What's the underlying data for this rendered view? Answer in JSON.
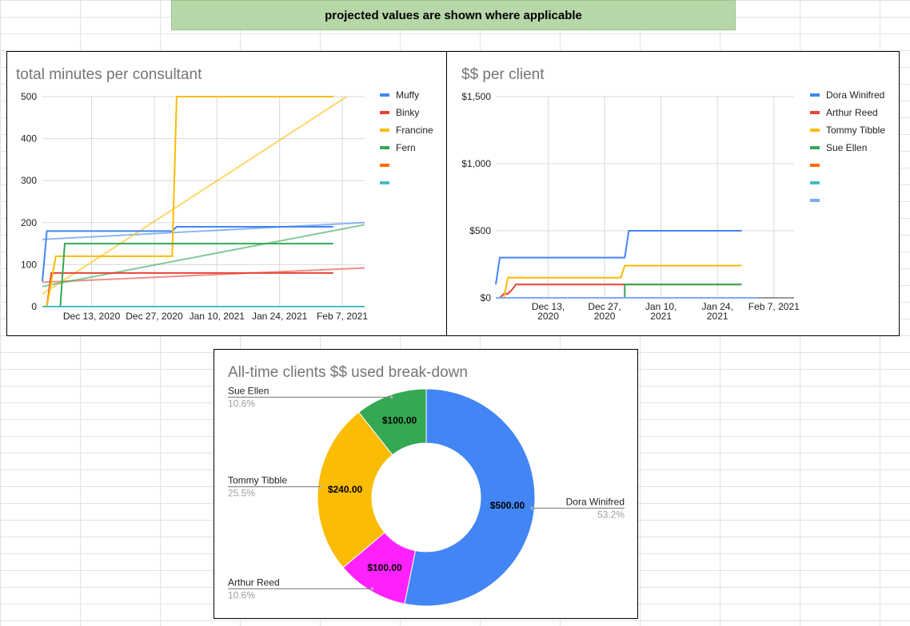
{
  "banner": {
    "text": "projected values are shown where applicable"
  },
  "chart_data": [
    {
      "type": "line",
      "title": "total minutes per consultant",
      "x_tick_labels": [
        "Dec 13, 2020",
        "Dec 27, 2020",
        "Jan 10, 2021",
        "Jan 24, 2021",
        "Feb 7, 2021"
      ],
      "x_tick_dates": [
        "2020-12-13",
        "2020-12-27",
        "2021-01-10",
        "2021-01-24",
        "2021-02-07"
      ],
      "xlim": [
        "2020-12-02",
        "2021-02-12"
      ],
      "ylim": [
        0,
        500
      ],
      "y_ticks": [
        0,
        100,
        200,
        300,
        400,
        500
      ],
      "y_tick_labels": [
        "0",
        "100",
        "200",
        "300",
        "400",
        "500"
      ],
      "grid": true,
      "legend_position": "right",
      "series": [
        {
          "name": "Muffy",
          "color": "#4285f4",
          "x": [
            "2020-12-02",
            "2020-12-03",
            "2020-12-31",
            "2021-01-01",
            "2021-02-05"
          ],
          "y": [
            60,
            180,
            180,
            190,
            190
          ]
        },
        {
          "name": "Binky",
          "color": "#ea4335",
          "x": [
            "2020-12-03",
            "2020-12-04",
            "2021-02-05"
          ],
          "y": [
            0,
            80,
            80
          ]
        },
        {
          "name": "Francine",
          "color": "#fbbc04",
          "x": [
            "2020-12-03",
            "2020-12-05",
            "2020-12-31",
            "2021-01-01",
            "2021-02-05"
          ],
          "y": [
            0,
            120,
            120,
            500,
            500
          ]
        },
        {
          "name": "Fern",
          "color": "#34a853",
          "x": [
            "2020-12-02",
            "2020-12-06",
            "2020-12-07",
            "2021-02-05"
          ],
          "y": [
            0,
            0,
            150,
            150
          ]
        },
        {
          "name": "",
          "color": "#ff6d01",
          "x": [
            "2020-12-02",
            "2021-02-12"
          ],
          "y": [
            0,
            0
          ]
        },
        {
          "name": "",
          "color": "#46bdc6",
          "x": [
            "2020-12-02",
            "2021-02-12"
          ],
          "y": [
            0,
            0
          ]
        }
      ],
      "trendlines": [
        {
          "color": "#4285f4",
          "x": [
            "2020-12-02",
            "2021-02-12"
          ],
          "y": [
            160,
            200
          ]
        },
        {
          "color": "#ea4335",
          "x": [
            "2020-12-02",
            "2021-02-12"
          ],
          "y": [
            58,
            92
          ]
        },
        {
          "color": "#fbbc04",
          "x": [
            "2020-12-02",
            "2021-02-08"
          ],
          "y": [
            30,
            500
          ]
        },
        {
          "color": "#34a853",
          "x": [
            "2020-12-02",
            "2021-02-12"
          ],
          "y": [
            48,
            195
          ]
        }
      ]
    },
    {
      "type": "line",
      "title": "$$ per client",
      "x_tick_labels": [
        [
          "Dec 13,",
          "2020"
        ],
        [
          "Dec 27,",
          "2020"
        ],
        [
          "Jan 10,",
          "2021"
        ],
        [
          "Jan 24,",
          "2021"
        ],
        [
          "Feb 7, 2021"
        ]
      ],
      "x_tick_dates": [
        "2020-12-13",
        "2020-12-27",
        "2021-01-10",
        "2021-01-24",
        "2021-02-07"
      ],
      "xlim": [
        "2020-11-30",
        "2021-02-12"
      ],
      "ylim": [
        0,
        1500
      ],
      "y_ticks": [
        0,
        500,
        1000,
        1500
      ],
      "y_tick_labels": [
        "$0",
        "$500",
        "$1,000",
        "$1,500"
      ],
      "grid": true,
      "legend_position": "right",
      "series": [
        {
          "name": "Dora Winifred",
          "color": "#4285f4",
          "x": [
            "2020-11-30",
            "2020-12-01",
            "2021-01-01",
            "2021-01-02",
            "2021-01-30"
          ],
          "y": [
            100,
            300,
            300,
            500,
            500
          ]
        },
        {
          "name": "Arthur Reed",
          "color": "#ea4335",
          "x": [
            "2020-12-01",
            "2020-12-02",
            "2020-12-03",
            "2020-12-04",
            "2020-12-05",
            "2021-01-30"
          ],
          "y": [
            0,
            30,
            30,
            60,
            100,
            100
          ]
        },
        {
          "name": "Tommy Tibble",
          "color": "#fbbc04",
          "x": [
            "2020-12-02",
            "2020-12-03",
            "2020-12-31",
            "2021-01-01",
            "2021-01-30"
          ],
          "y": [
            0,
            150,
            150,
            240,
            240
          ]
        },
        {
          "name": "Sue Ellen",
          "color": "#34a853",
          "x": [
            "2020-11-30",
            "2021-01-01",
            "2021-01-01",
            "2021-01-30"
          ],
          "y": [
            0,
            0,
            100,
            100
          ]
        },
        {
          "name": "",
          "color": "#ff6d01",
          "x": [
            "2020-11-30",
            "2021-02-03"
          ],
          "y": [
            0,
            0
          ]
        },
        {
          "name": "",
          "color": "#46bdc6",
          "x": [
            "2020-11-30",
            "2021-02-03"
          ],
          "y": [
            0,
            0
          ]
        },
        {
          "name": "",
          "color": "#7baaf7",
          "x": [
            "2020-11-30",
            "2021-02-03"
          ],
          "y": [
            0,
            0
          ]
        }
      ]
    },
    {
      "type": "pie",
      "donut": true,
      "title": "All-time clients $$ used break-down",
      "slices": [
        {
          "name": "Dora Winifred",
          "value": 500,
          "value_label": "$500.00",
          "percent_label": "53.2%",
          "color": "#4285f4",
          "label_side": "right"
        },
        {
          "name": "Arthur Reed",
          "value": 100,
          "value_label": "$100.00",
          "percent_label": "10.6%",
          "color": "#ff22ff",
          "label_side": "left"
        },
        {
          "name": "Tommy Tibble",
          "value": 240,
          "value_label": "$240.00",
          "percent_label": "25.5%",
          "color": "#fbbc04",
          "label_side": "left"
        },
        {
          "name": "Sue Ellen",
          "value": 100,
          "value_label": "$100.00",
          "percent_label": "10.6%",
          "color": "#34a853",
          "label_side": "left"
        }
      ]
    }
  ]
}
